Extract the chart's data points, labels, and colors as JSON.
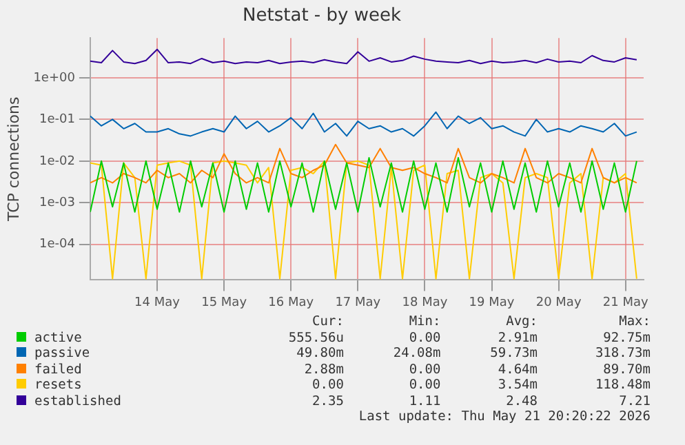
{
  "chart_data": {
    "type": "line",
    "title": "Netstat - by week",
    "ylabel": "TCP connections",
    "x": [
      "2026-05-13T00:00",
      "2026-05-13T04:00",
      "2026-05-13T08:00",
      "2026-05-13T12:00",
      "2026-05-13T16:00",
      "2026-05-13T20:00",
      "2026-05-14T00:00",
      "2026-05-14T04:00",
      "2026-05-14T08:00",
      "2026-05-14T12:00",
      "2026-05-14T16:00",
      "2026-05-14T20:00",
      "2026-05-15T00:00",
      "2026-05-15T04:00",
      "2026-05-15T08:00",
      "2026-05-15T12:00",
      "2026-05-15T16:00",
      "2026-05-15T20:00",
      "2026-05-16T00:00",
      "2026-05-16T04:00",
      "2026-05-16T08:00",
      "2026-05-16T12:00",
      "2026-05-16T16:00",
      "2026-05-16T20:00",
      "2026-05-17T00:00",
      "2026-05-17T04:00",
      "2026-05-17T08:00",
      "2026-05-17T12:00",
      "2026-05-17T16:00",
      "2026-05-17T20:00",
      "2026-05-18T00:00",
      "2026-05-18T04:00",
      "2026-05-18T08:00",
      "2026-05-18T12:00",
      "2026-05-18T16:00",
      "2026-05-18T20:00",
      "2026-05-19T00:00",
      "2026-05-19T04:00",
      "2026-05-19T08:00",
      "2026-05-19T12:00",
      "2026-05-19T16:00",
      "2026-05-19T20:00",
      "2026-05-20T00:00",
      "2026-05-20T04:00",
      "2026-05-20T08:00",
      "2026-05-20T12:00",
      "2026-05-20T16:00",
      "2026-05-20T20:00",
      "2026-05-21T00:00",
      "2026-05-21T04:00"
    ],
    "series": [
      {
        "name": "active",
        "color": "#00cc00",
        "values": [
          0.0006,
          0.01,
          0.0008,
          0.009,
          0.0006,
          0.01,
          0.0007,
          0.009,
          0.0006,
          0.01,
          0.0008,
          0.009,
          0.0006,
          0.01,
          0.0007,
          0.009,
          0.0006,
          0.01,
          0.0008,
          0.009,
          0.0006,
          0.01,
          0.0007,
          0.009,
          0.0006,
          0.012,
          0.0008,
          0.009,
          0.0006,
          0.01,
          0.0007,
          0.009,
          0.0006,
          0.012,
          0.0008,
          0.009,
          0.0006,
          0.01,
          0.0007,
          0.009,
          0.0006,
          0.01,
          0.0008,
          0.009,
          0.0006,
          0.01,
          0.0007,
          0.009,
          0.0006,
          0.01
        ]
      },
      {
        "name": "passive",
        "color": "#0066b3",
        "values": [
          0.12,
          0.07,
          0.1,
          0.06,
          0.08,
          0.05,
          0.05,
          0.06,
          0.045,
          0.04,
          0.05,
          0.06,
          0.05,
          0.12,
          0.06,
          0.09,
          0.05,
          0.07,
          0.11,
          0.06,
          0.14,
          0.05,
          0.08,
          0.04,
          0.09,
          0.06,
          0.07,
          0.05,
          0.06,
          0.04,
          0.07,
          0.15,
          0.06,
          0.12,
          0.08,
          0.11,
          0.06,
          0.07,
          0.05,
          0.04,
          0.1,
          0.05,
          0.06,
          0.05,
          0.07,
          0.06,
          0.05,
          0.08,
          0.04,
          0.05
        ]
      },
      {
        "name": "failed",
        "color": "#ff8000",
        "values": [
          0.003,
          0.004,
          0.003,
          0.005,
          0.004,
          0.003,
          0.006,
          0.004,
          0.005,
          0.003,
          0.006,
          0.004,
          0.015,
          0.005,
          0.003,
          0.004,
          0.003,
          0.02,
          0.005,
          0.004,
          0.006,
          0.008,
          0.025,
          0.009,
          0.008,
          0.007,
          0.02,
          0.007,
          0.006,
          0.007,
          0.005,
          0.004,
          0.003,
          0.02,
          0.004,
          0.003,
          0.005,
          0.004,
          0.003,
          0.02,
          0.004,
          0.003,
          0.005,
          0.004,
          0.003,
          0.02,
          0.004,
          0.003,
          0.004,
          0.003
        ]
      },
      {
        "name": "resets",
        "color": "#ffcc00",
        "values": [
          0.009,
          0.008,
          1.5e-05,
          0.009,
          0.004,
          1.5e-05,
          0.008,
          0.009,
          0.01,
          0.008,
          1.5e-05,
          0.009,
          0.01,
          0.009,
          0.008,
          0.003,
          0.007,
          1.5e-05,
          0.006,
          0.007,
          0.005,
          0.01,
          1.5e-05,
          0.009,
          0.01,
          0.008,
          1.5e-05,
          0.007,
          1.5e-05,
          0.006,
          0.008,
          1.5e-05,
          0.005,
          0.006,
          1.5e-05,
          0.004,
          0.005,
          0.003,
          1.5e-05,
          0.004,
          0.005,
          0.004,
          1.5e-05,
          0.003,
          0.005,
          1.5e-05,
          0.004,
          0.003,
          0.005,
          1.5e-05
        ]
      },
      {
        "name": "established",
        "color": "#330099",
        "values": [
          2.5,
          2.3,
          4.5,
          2.4,
          2.2,
          2.6,
          4.8,
          2.3,
          2.4,
          2.2,
          2.9,
          2.3,
          2.5,
          2.2,
          2.4,
          2.3,
          2.6,
          2.2,
          2.4,
          2.5,
          2.3,
          2.7,
          2.4,
          2.2,
          4.2,
          2.5,
          3.0,
          2.4,
          2.6,
          3.3,
          2.8,
          2.5,
          2.4,
          2.3,
          2.6,
          2.2,
          2.5,
          2.3,
          2.4,
          2.6,
          2.3,
          2.8,
          2.4,
          2.5,
          2.3,
          3.4,
          2.6,
          2.4,
          3.0,
          2.7
        ]
      }
    ],
    "log": "y",
    "ylim": [
      1.4e-05,
      9
    ],
    "yticks": [
      {
        "value": 0.0001,
        "label": "1e-04"
      },
      {
        "value": 0.001,
        "label": "1e-03"
      },
      {
        "value": 0.01,
        "label": "1e-02"
      },
      {
        "value": 0.1,
        "label": "1e-01"
      },
      {
        "value": 1,
        "label": "1e+00"
      }
    ],
    "xlim": [
      "2026-05-13T00:00",
      "2026-05-21T06:30"
    ],
    "xticks": [
      {
        "value": "2026-05-14",
        "label": "14 May"
      },
      {
        "value": "2026-05-15",
        "label": "15 May"
      },
      {
        "value": "2026-05-16",
        "label": "16 May"
      },
      {
        "value": "2026-05-17",
        "label": "17 May"
      },
      {
        "value": "2026-05-18",
        "label": "18 May"
      },
      {
        "value": "2026-05-19",
        "label": "19 May"
      },
      {
        "value": "2026-05-20",
        "label": "20 May"
      },
      {
        "value": "2026-05-21",
        "label": "21 May"
      }
    ],
    "grid": true,
    "legend": "bottom",
    "marker": "none",
    "line_style": "solid",
    "annotations": [
      "Cur:",
      "Min:",
      "Avg:",
      "Max:",
      "555.56u",
      "0.00",
      "2.91m",
      "92.75m",
      "49.80m",
      "24.08m",
      "59.73m",
      "318.73m",
      "2.88m",
      "0.00",
      "4.64m",
      "89.70m",
      "0.00",
      "0.00",
      "3.54m",
      "118.48m",
      "2.35",
      "1.11",
      "2.48",
      "7.21",
      "Last update: Thu May 21 20:20:22 2026"
    ]
  }
}
